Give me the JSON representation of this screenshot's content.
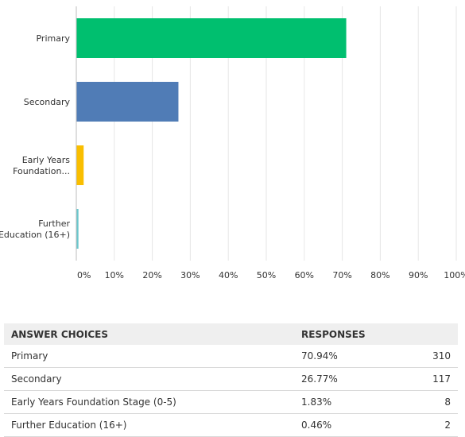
{
  "chart_data": {
    "type": "bar",
    "orientation": "horizontal",
    "categories": [
      [
        "Primary"
      ],
      [
        "Secondary"
      ],
      [
        "Early Years",
        "Foundation..."
      ],
      [
        "Further",
        "Education (16+)"
      ]
    ],
    "values": [
      70.94,
      26.77,
      1.83,
      0.46
    ],
    "colors": [
      "#00bf6f",
      "#507cb6",
      "#f9be00",
      "#6bc8cd"
    ],
    "x_ticks": [
      "0%",
      "10%",
      "20%",
      "30%",
      "40%",
      "50%",
      "60%",
      "70%",
      "80%",
      "90%",
      "100%"
    ],
    "xlim": [
      0,
      100
    ],
    "grid": true
  },
  "table": {
    "headers": {
      "choices": "ANSWER CHOICES",
      "responses": "RESPONSES"
    },
    "rows": [
      {
        "choice": "Primary",
        "percent": "70.94%",
        "count": "310"
      },
      {
        "choice": "Secondary",
        "percent": "26.77%",
        "count": "117"
      },
      {
        "choice": "Early Years Foundation Stage (0-5)",
        "percent": "1.83%",
        "count": "8"
      },
      {
        "choice": "Further Education (16+)",
        "percent": "0.46%",
        "count": "2"
      }
    ]
  }
}
